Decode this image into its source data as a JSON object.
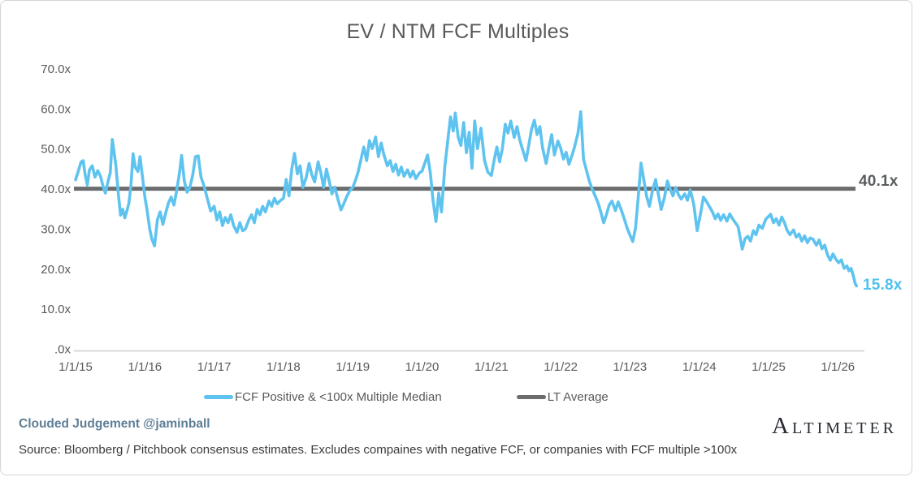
{
  "chart_data": {
    "type": "line",
    "title": "EV / NTM FCF Multiples",
    "legend_position": "bottom",
    "grid": "off",
    "x_axis": {
      "tick_labels": [
        "1/1/15",
        "1/1/16",
        "1/1/17",
        "1/1/18",
        "1/1/19",
        "1/1/20",
        "1/1/21",
        "1/1/22",
        "1/1/23",
        "1/1/24",
        "1/1/25",
        "1/1/26"
      ],
      "unit": "years_since_2015",
      "range": [
        0,
        11.3
      ]
    },
    "y_axis": {
      "tick_labels": [
        "70.0x",
        "60.0x",
        "50.0x",
        "40.0x",
        "30.0x",
        "20.0x",
        "10.0x",
        ".0x"
      ],
      "tick_values": [
        70,
        60,
        50,
        40,
        30,
        20,
        10,
        0
      ],
      "range": [
        0,
        70
      ]
    },
    "series": [
      {
        "name": "FCF Positive & <100x Multiple Median",
        "color": "#5fc3ef",
        "end_label": "15.8x",
        "last_value": 15.8,
        "points": [
          [
            0.0,
            42.3
          ],
          [
            0.04,
            44.5
          ],
          [
            0.08,
            46.8
          ],
          [
            0.11,
            47.1
          ],
          [
            0.14,
            43.5
          ],
          [
            0.17,
            41.0
          ],
          [
            0.2,
            44.8
          ],
          [
            0.24,
            45.8
          ],
          [
            0.28,
            43.0
          ],
          [
            0.32,
            44.6
          ],
          [
            0.36,
            43.2
          ],
          [
            0.4,
            40.5
          ],
          [
            0.43,
            39.0
          ],
          [
            0.47,
            42.0
          ],
          [
            0.5,
            44.0
          ],
          [
            0.53,
            52.4
          ],
          [
            0.55,
            50.0
          ],
          [
            0.58,
            46.1
          ],
          [
            0.62,
            38.3
          ],
          [
            0.65,
            33.5
          ],
          [
            0.68,
            35.0
          ],
          [
            0.71,
            32.8
          ],
          [
            0.74,
            34.5
          ],
          [
            0.77,
            36.5
          ],
          [
            0.8,
            41.0
          ],
          [
            0.83,
            48.8
          ],
          [
            0.86,
            45.5
          ],
          [
            0.9,
            44.4
          ],
          [
            0.93,
            48.1
          ],
          [
            0.97,
            42.5
          ],
          [
            1.0,
            38.0
          ],
          [
            1.03,
            34.9
          ],
          [
            1.07,
            30.0
          ],
          [
            1.1,
            27.6
          ],
          [
            1.14,
            25.8
          ],
          [
            1.18,
            32.3
          ],
          [
            1.22,
            34.3
          ],
          [
            1.26,
            31.2
          ],
          [
            1.3,
            34.0
          ],
          [
            1.34,
            36.5
          ],
          [
            1.38,
            38.0
          ],
          [
            1.42,
            36.0
          ],
          [
            1.46,
            39.7
          ],
          [
            1.5,
            44.0
          ],
          [
            1.53,
            48.4
          ],
          [
            1.57,
            42.0
          ],
          [
            1.61,
            39.2
          ],
          [
            1.65,
            40.4
          ],
          [
            1.69,
            43.5
          ],
          [
            1.73,
            48.1
          ],
          [
            1.77,
            48.3
          ],
          [
            1.81,
            43.0
          ],
          [
            1.85,
            41.0
          ],
          [
            1.9,
            37.7
          ],
          [
            1.95,
            34.5
          ],
          [
            2.0,
            35.7
          ],
          [
            2.04,
            32.3
          ],
          [
            2.08,
            34.3
          ],
          [
            2.12,
            30.9
          ],
          [
            2.16,
            32.9
          ],
          [
            2.2,
            31.6
          ],
          [
            2.24,
            33.6
          ],
          [
            2.28,
            30.9
          ],
          [
            2.33,
            29.2
          ],
          [
            2.37,
            31.6
          ],
          [
            2.41,
            29.6
          ],
          [
            2.45,
            30.0
          ],
          [
            2.5,
            32.3
          ],
          [
            2.54,
            33.6
          ],
          [
            2.58,
            31.6
          ],
          [
            2.62,
            34.9
          ],
          [
            2.66,
            33.6
          ],
          [
            2.7,
            35.7
          ],
          [
            2.74,
            34.3
          ],
          [
            2.79,
            37.0
          ],
          [
            2.83,
            35.7
          ],
          [
            2.87,
            37.7
          ],
          [
            2.91,
            36.3
          ],
          [
            2.96,
            37.2
          ],
          [
            3.0,
            37.7
          ],
          [
            3.04,
            42.4
          ],
          [
            3.08,
            38.3
          ],
          [
            3.12,
            45.0
          ],
          [
            3.16,
            48.9
          ],
          [
            3.2,
            43.8
          ],
          [
            3.24,
            45.8
          ],
          [
            3.28,
            40.4
          ],
          [
            3.33,
            43.0
          ],
          [
            3.37,
            46.4
          ],
          [
            3.41,
            43.5
          ],
          [
            3.45,
            41.8
          ],
          [
            3.5,
            46.8
          ],
          [
            3.54,
            44.0
          ],
          [
            3.58,
            40.4
          ],
          [
            3.62,
            45.0
          ],
          [
            3.66,
            42.0
          ],
          [
            3.7,
            38.8
          ],
          [
            3.74,
            40.5
          ],
          [
            3.79,
            37.2
          ],
          [
            3.83,
            34.8
          ],
          [
            3.87,
            36.3
          ],
          [
            3.91,
            38.0
          ],
          [
            3.96,
            39.7
          ],
          [
            4.0,
            40.4
          ],
          [
            4.04,
            42.2
          ],
          [
            4.08,
            44.4
          ],
          [
            4.12,
            47.5
          ],
          [
            4.16,
            50.5
          ],
          [
            4.2,
            47.1
          ],
          [
            4.24,
            52.1
          ],
          [
            4.28,
            50.1
          ],
          [
            4.33,
            53.0
          ],
          [
            4.37,
            48.1
          ],
          [
            4.41,
            51.5
          ],
          [
            4.45,
            48.5
          ],
          [
            4.5,
            45.8
          ],
          [
            4.54,
            47.1
          ],
          [
            4.58,
            44.4
          ],
          [
            4.62,
            46.2
          ],
          [
            4.66,
            43.5
          ],
          [
            4.7,
            45.5
          ],
          [
            4.74,
            43.2
          ],
          [
            4.79,
            44.8
          ],
          [
            4.83,
            43.0
          ],
          [
            4.87,
            44.5
          ],
          [
            4.91,
            42.6
          ],
          [
            4.96,
            44.0
          ],
          [
            5.0,
            44.5
          ],
          [
            5.04,
            46.5
          ],
          [
            5.08,
            48.5
          ],
          [
            5.12,
            44.0
          ],
          [
            5.16,
            37.0
          ],
          [
            5.2,
            31.9
          ],
          [
            5.24,
            39.0
          ],
          [
            5.28,
            34.3
          ],
          [
            5.33,
            45.8
          ],
          [
            5.37,
            52.0
          ],
          [
            5.41,
            58.0
          ],
          [
            5.45,
            54.5
          ],
          [
            5.48,
            59.0
          ],
          [
            5.52,
            53.0
          ],
          [
            5.56,
            50.9
          ],
          [
            5.6,
            56.6
          ],
          [
            5.64,
            49.1
          ],
          [
            5.68,
            54.2
          ],
          [
            5.72,
            45.2
          ],
          [
            5.76,
            57.0
          ],
          [
            5.8,
            50.1
          ],
          [
            5.85,
            55.2
          ],
          [
            5.9,
            47.2
          ],
          [
            5.95,
            44.2
          ],
          [
            6.0,
            43.4
          ],
          [
            6.04,
            47.2
          ],
          [
            6.08,
            50.5
          ],
          [
            6.12,
            46.8
          ],
          [
            6.16,
            50.2
          ],
          [
            6.2,
            56.2
          ],
          [
            6.24,
            54.0
          ],
          [
            6.28,
            57.0
          ],
          [
            6.33,
            52.9
          ],
          [
            6.37,
            55.6
          ],
          [
            6.41,
            52.2
          ],
          [
            6.45,
            49.9
          ],
          [
            6.5,
            47.1
          ],
          [
            6.54,
            51.0
          ],
          [
            6.58,
            55.0
          ],
          [
            6.62,
            57.2
          ],
          [
            6.66,
            53.6
          ],
          [
            6.7,
            55.6
          ],
          [
            6.74,
            50.2
          ],
          [
            6.79,
            46.4
          ],
          [
            6.83,
            50.2
          ],
          [
            6.87,
            53.6
          ],
          [
            6.91,
            48.5
          ],
          [
            6.96,
            52.0
          ],
          [
            7.0,
            50.2
          ],
          [
            7.04,
            47.5
          ],
          [
            7.08,
            49.2
          ],
          [
            7.12,
            46.2
          ],
          [
            7.16,
            48.2
          ],
          [
            7.2,
            50.5
          ],
          [
            7.25,
            54.0
          ],
          [
            7.29,
            59.3
          ],
          [
            7.33,
            47.5
          ],
          [
            7.37,
            44.8
          ],
          [
            7.41,
            42.2
          ],
          [
            7.45,
            40.2
          ],
          [
            7.5,
            38.2
          ],
          [
            7.54,
            36.5
          ],
          [
            7.58,
            34.2
          ],
          [
            7.62,
            31.6
          ],
          [
            7.66,
            33.6
          ],
          [
            7.7,
            36.0
          ],
          [
            7.74,
            37.0
          ],
          [
            7.79,
            34.6
          ],
          [
            7.83,
            36.8
          ],
          [
            7.87,
            35.0
          ],
          [
            7.91,
            33.0
          ],
          [
            7.96,
            30.2
          ],
          [
            8.0,
            28.5
          ],
          [
            8.04,
            26.9
          ],
          [
            8.08,
            30.2
          ],
          [
            8.12,
            38.0
          ],
          [
            8.16,
            46.5
          ],
          [
            8.2,
            42.2
          ],
          [
            8.24,
            38.2
          ],
          [
            8.28,
            35.7
          ],
          [
            8.33,
            40.0
          ],
          [
            8.37,
            42.4
          ],
          [
            8.41,
            38.6
          ],
          [
            8.45,
            34.9
          ],
          [
            8.5,
            38.0
          ],
          [
            8.54,
            42.0
          ],
          [
            8.58,
            40.0
          ],
          [
            8.62,
            38.3
          ],
          [
            8.66,
            40.4
          ],
          [
            8.7,
            38.6
          ],
          [
            8.74,
            37.5
          ],
          [
            8.79,
            38.8
          ],
          [
            8.83,
            37.2
          ],
          [
            8.87,
            39.8
          ],
          [
            8.92,
            36.2
          ],
          [
            8.97,
            29.6
          ],
          [
            9.02,
            34.0
          ],
          [
            9.06,
            38.0
          ],
          [
            9.1,
            37.0
          ],
          [
            9.15,
            35.5
          ],
          [
            9.19,
            34.3
          ],
          [
            9.23,
            32.6
          ],
          [
            9.27,
            33.8
          ],
          [
            9.31,
            32.2
          ],
          [
            9.35,
            33.6
          ],
          [
            9.4,
            32.0
          ],
          [
            9.44,
            33.8
          ],
          [
            9.48,
            32.6
          ],
          [
            9.52,
            31.6
          ],
          [
            9.56,
            30.6
          ],
          [
            9.62,
            25.0
          ],
          [
            9.66,
            27.6
          ],
          [
            9.7,
            28.2
          ],
          [
            9.74,
            27.0
          ],
          [
            9.78,
            29.6
          ],
          [
            9.82,
            28.6
          ],
          [
            9.86,
            31.0
          ],
          [
            9.91,
            30.2
          ],
          [
            9.96,
            32.5
          ],
          [
            10.03,
            33.7
          ],
          [
            10.07,
            31.6
          ],
          [
            10.11,
            32.6
          ],
          [
            10.15,
            31.0
          ],
          [
            10.19,
            33.0
          ],
          [
            10.23,
            31.6
          ],
          [
            10.27,
            29.6
          ],
          [
            10.31,
            28.6
          ],
          [
            10.36,
            29.8
          ],
          [
            10.4,
            28.0
          ],
          [
            10.44,
            28.8
          ],
          [
            10.48,
            27.0
          ],
          [
            10.52,
            28.3
          ],
          [
            10.56,
            26.6
          ],
          [
            10.6,
            27.8
          ],
          [
            10.64,
            27.5
          ],
          [
            10.69,
            26.0
          ],
          [
            10.73,
            27.3
          ],
          [
            10.77,
            25.1
          ],
          [
            10.81,
            26.0
          ],
          [
            10.85,
            23.6
          ],
          [
            10.89,
            22.2
          ],
          [
            10.93,
            23.8
          ],
          [
            10.97,
            22.5
          ],
          [
            11.01,
            21.6
          ],
          [
            11.05,
            22.3
          ],
          [
            11.09,
            20.2
          ],
          [
            11.13,
            20.8
          ],
          [
            11.16,
            19.6
          ],
          [
            11.19,
            20.2
          ],
          [
            11.22,
            18.5
          ],
          [
            11.25,
            16.4
          ],
          [
            11.27,
            15.8
          ]
        ]
      },
      {
        "name": "LT Average",
        "color": "#6a6c6e",
        "end_label": "40.1x",
        "value": 40.1
      }
    ]
  },
  "footer": {
    "credit": "Clouded Judgement @jaminball",
    "source": "Source: Bloomberg / Pitchbook consensus estimates. Excludes compaines with negative FCF, or companies with FCF multiple >100x",
    "logo": "Altimeter"
  },
  "colors": {
    "series_blue": "#5fc3ef",
    "series_gray": "#6a6c6e",
    "axis_text": "#595959",
    "axis_line": "#d9d9d9",
    "annotation_blue": "#4fc0ef",
    "annotation_gray": "#595c5e",
    "credit_text": "#5e7e96"
  }
}
